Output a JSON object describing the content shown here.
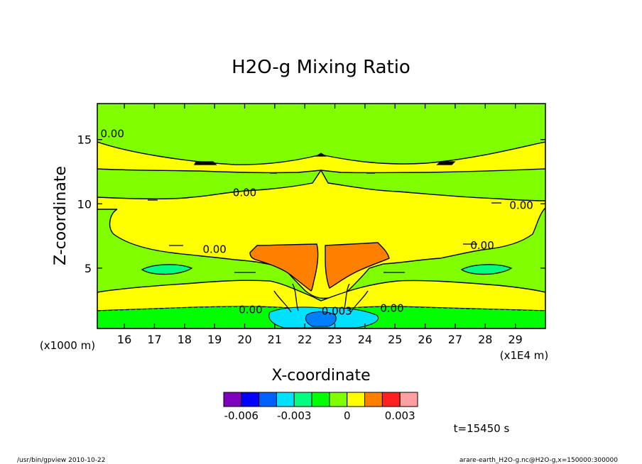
{
  "chart_data": {
    "type": "heatmap",
    "title": "H2O-g Mixing Ratio",
    "xlabel": "X-coordinate",
    "ylabel": "Z-coordinate",
    "x_unit_label": "(x1E4 m)",
    "y_unit_label": "(x1000 m)",
    "xlim": [
      15.1,
      30
    ],
    "ylim": [
      0.3,
      17.8
    ],
    "x_ticks": [
      16,
      17,
      18,
      19,
      20,
      21,
      22,
      23,
      24,
      25,
      26,
      27,
      28,
      29
    ],
    "y_ticks": [
      5,
      10,
      15
    ],
    "contour_labels": [
      {
        "text": "0.00",
        "x": 15.6,
        "z": 15.3
      },
      {
        "text": "0.00",
        "x": 20.0,
        "z": 10.7
      },
      {
        "text": "0.00",
        "x": 29.2,
        "z": 9.7
      },
      {
        "text": "0.00",
        "x": 19.0,
        "z": 6.3
      },
      {
        "text": "0.00",
        "x": 27.9,
        "z": 6.6
      },
      {
        "text": "0.00",
        "x": 20.2,
        "z": 1.6
      },
      {
        "text": "-0.003",
        "x": 23.0,
        "z": 1.5
      },
      {
        "text": "0.00",
        "x": 24.9,
        "z": 1.7
      }
    ],
    "regions": [
      {
        "name": "background",
        "level": "0 to 0.0005",
        "color": "#80ff00"
      },
      {
        "name": "upper-band",
        "level": "0.0005 to 0.001",
        "color": "#ffff00"
      },
      {
        "name": "anvil",
        "level": "0.0005 to 0.001",
        "color": "#ffff00"
      },
      {
        "name": "lower-layer",
        "level": "0.0005 to 0.001",
        "color": "#ffff00"
      },
      {
        "name": "core-left",
        "level": "0.001 to 0.0015",
        "color": "#ff8000"
      },
      {
        "name": "core-right",
        "level": "0.001 to 0.0015",
        "color": "#ff8000"
      },
      {
        "name": "boundary-layer",
        "level": "-0.001 to 0",
        "color": "#00ff00"
      },
      {
        "name": "deficit-zone",
        "level": "-0.003 to -0.002",
        "color": "#00e0ff"
      },
      {
        "name": "deficit-core",
        "level": "-0.004 to -0.003",
        "color": "#0080ff"
      }
    ],
    "colorbar": {
      "colors": [
        "#8000c0",
        "#0000ff",
        "#0060ff",
        "#00e0ff",
        "#00ff80",
        "#00ff00",
        "#80ff00",
        "#ffff00",
        "#ff8000",
        "#ff2020",
        "#ffa0a0"
      ],
      "tick_labels": [
        "-0.006",
        "-0.003",
        "0",
        "0.003"
      ]
    }
  },
  "time_label": "t=15450 s",
  "footer": {
    "left": "/usr/bin/gpview   2010-10-22",
    "right": "arare-earth_H2O-g.nc@H2O-g,x=150000:300000"
  }
}
